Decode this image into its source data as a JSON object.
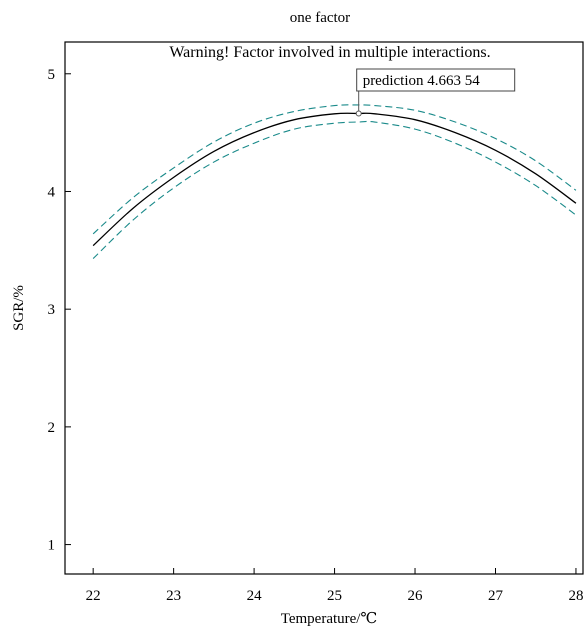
{
  "chart_data": {
    "type": "line",
    "title": "one factor",
    "xlabel": "Temperature/℃",
    "ylabel": "SGR/%",
    "xlim": [
      21.65,
      28.1
    ],
    "ylim": [
      0.75,
      5.27
    ],
    "x_ticks": [
      22,
      23,
      24,
      25,
      26,
      27,
      28
    ],
    "y_ticks": [
      1,
      2,
      3,
      4,
      5
    ],
    "grid": false,
    "warning": "Warning! Factor involved in multiple interactions.",
    "warning_color": "#e8141c",
    "ci_color": "#1a8a8a",
    "prediction": {
      "x": 25.3,
      "y": 4.663,
      "label": "prediction 4.663 54"
    },
    "series": [
      {
        "role": "prediction",
        "x": [
          22,
          22.5,
          23,
          23.5,
          24,
          24.5,
          25,
          25.3,
          25.5,
          26,
          26.5,
          27,
          27.5,
          28
        ],
        "values": [
          3.54,
          3.86,
          4.12,
          4.34,
          4.5,
          4.61,
          4.66,
          4.663,
          4.66,
          4.61,
          4.5,
          4.35,
          4.15,
          3.9
        ]
      },
      {
        "role": "upper-ci",
        "x": [
          22,
          22.5,
          23,
          23.5,
          24,
          24.5,
          25,
          25.3,
          25.5,
          26,
          26.5,
          27,
          27.5,
          28
        ],
        "values": [
          3.64,
          3.95,
          4.2,
          4.42,
          4.58,
          4.68,
          4.73,
          4.735,
          4.73,
          4.69,
          4.59,
          4.45,
          4.26,
          4.01
        ]
      },
      {
        "role": "lower-ci",
        "x": [
          22,
          22.5,
          23,
          23.5,
          24,
          24.5,
          25,
          25.3,
          25.5,
          26,
          26.5,
          27,
          27.5,
          28
        ],
        "values": [
          3.43,
          3.76,
          4.03,
          4.25,
          4.41,
          4.53,
          4.58,
          4.59,
          4.59,
          4.53,
          4.41,
          4.25,
          4.05,
          3.8
        ]
      }
    ]
  }
}
